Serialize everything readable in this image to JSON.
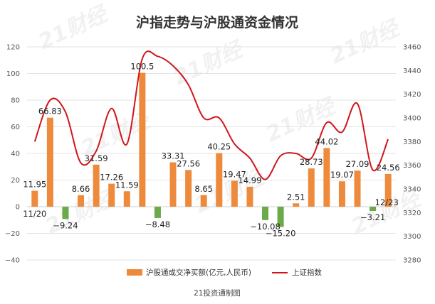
{
  "chart_data": {
    "type": "bar-line-combo",
    "title": "沪指走势与沪股通资金情况",
    "source": "21投资通制图",
    "watermark": "21财经",
    "start_label": "11/20",
    "end_label": "12/23",
    "series": [
      {
        "name": "沪股通成交净买额(亿元,人民币)",
        "type": "bar",
        "axis": "left",
        "color": "#ee8a3c",
        "negative_color": "#6aaa4a",
        "values": [
          11.95,
          66.83,
          -9.24,
          8.66,
          31.59,
          17.26,
          11.59,
          100.5,
          -8.48,
          33.31,
          27.56,
          8.65,
          40.25,
          19.47,
          14.99,
          -10.08,
          -15.2,
          2.51,
          28.73,
          44.02,
          19.07,
          27.09,
          -3.21,
          24.56
        ]
      },
      {
        "name": "上证指数",
        "type": "line",
        "axis": "right",
        "color": "#d0161b",
        "values": [
          3380,
          3415,
          3405,
          3362,
          3372,
          3408,
          3378,
          3450,
          3452,
          3444,
          3428,
          3400,
          3400,
          3378,
          3366,
          3348,
          3368,
          3370,
          3366,
          3396,
          3388,
          3412,
          3356,
          3382
        ]
      }
    ],
    "data_labels": [
      "11.95",
      "66.83",
      "−9.24",
      "8.66",
      "31.59",
      "17.26",
      "11.59",
      "100.5",
      "−8.48",
      "33.31",
      "27.56",
      "8.65",
      "40.25",
      "19.47",
      "14.99",
      "−10.08",
      "−15.20",
      "2.51",
      "28.73",
      "44.02",
      "19.07",
      "27.09",
      "−3.21",
      "24.56"
    ],
    "y_left": {
      "min": -40,
      "max": 120,
      "step": 20
    },
    "y_right": {
      "min": 3280,
      "max": 3460,
      "step": 20
    },
    "legend_position": "bottom"
  }
}
